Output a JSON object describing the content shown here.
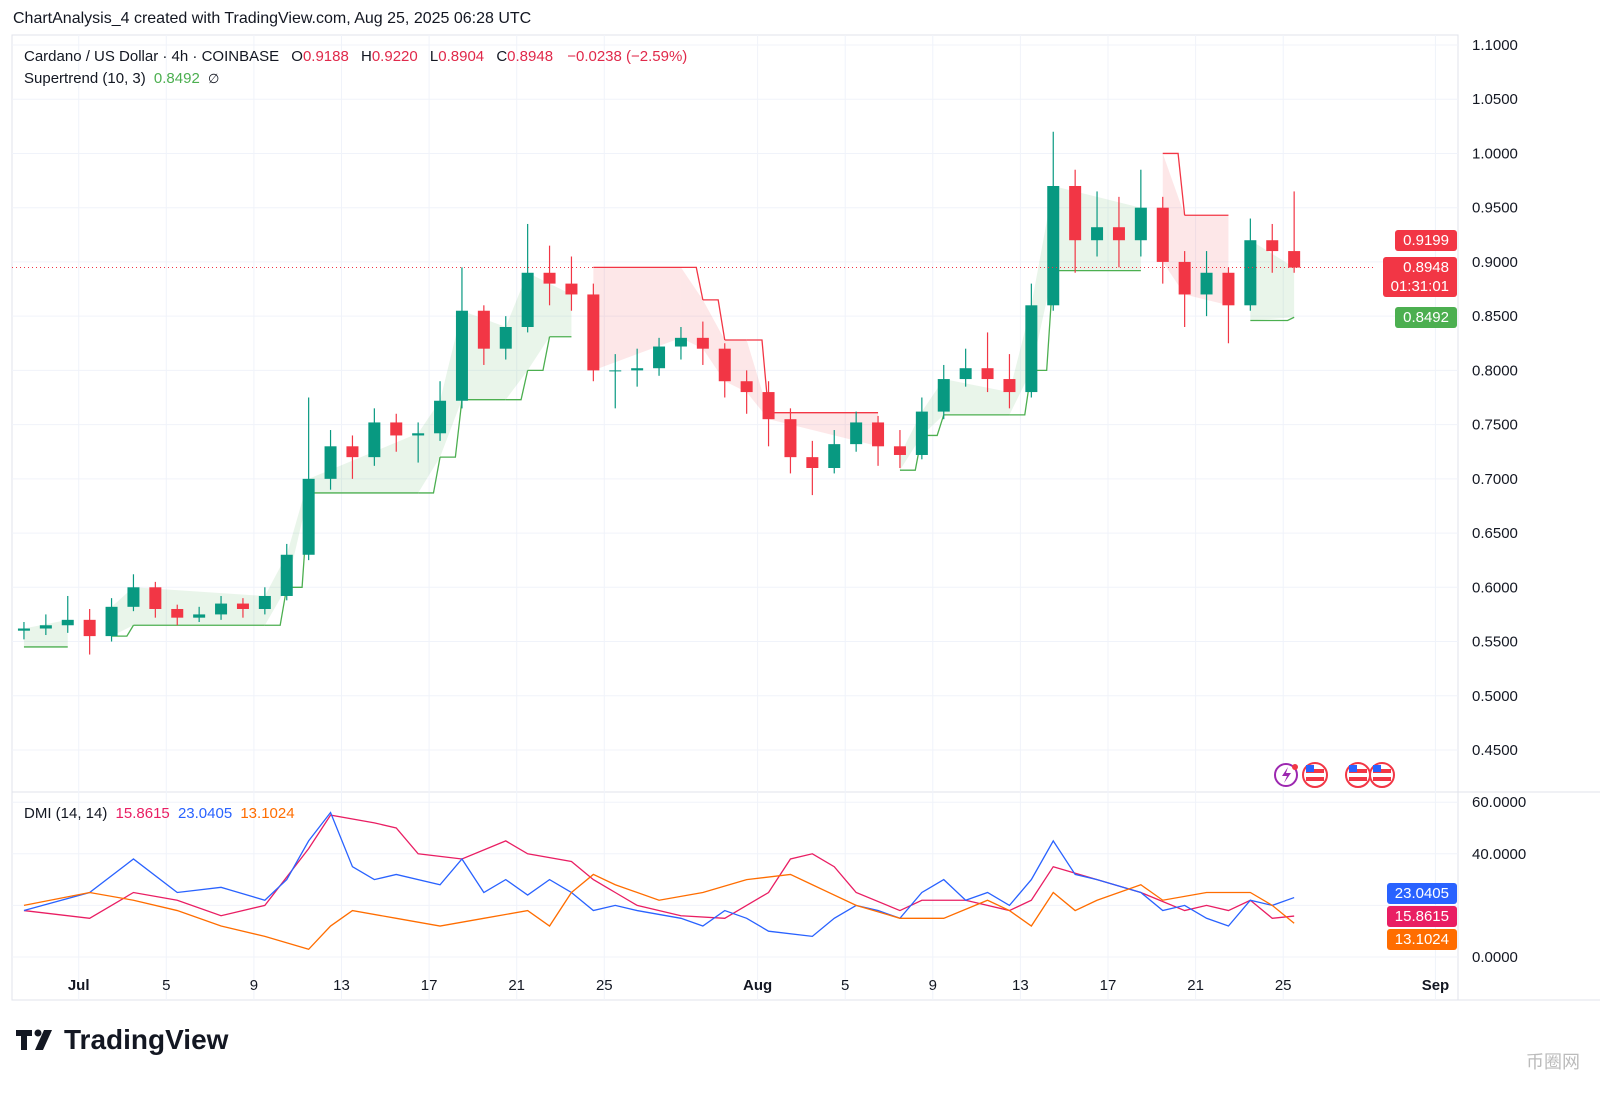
{
  "header": {
    "caption": "ChartAnalysis_4 created with TradingView.com, Aug 25, 2025 06:28 UTC"
  },
  "legend": {
    "symbol": "Cardano / US Dollar · 4h · COINBASE",
    "o_label": "O",
    "o": "0.9188",
    "h_label": "H",
    "h": "0.9220",
    "l_label": "L",
    "l": "0.8904",
    "c_label": "C",
    "c": "0.8948",
    "change": "−0.0238 (−2.59%)",
    "supertrend_name": "Supertrend (10, 3)",
    "supertrend_value": "0.8492",
    "supertrend_icon": "∅",
    "dmi_name": "DMI (14, 14)",
    "dmi_v1": "15.8615",
    "dmi_v2": "23.0405",
    "dmi_v3": "13.1024"
  },
  "price_tags": {
    "supertrend_upper": "0.9199",
    "last": "0.8948",
    "countdown": "01:31:01",
    "supertrend_lower": "0.8492"
  },
  "dmi_tags": {
    "plus": "23.0405",
    "adx": "15.8615",
    "minus": "13.1024"
  },
  "colors": {
    "up": "#089981",
    "down": "#f23645",
    "st_up": "#4caf50",
    "st_down": "#f23645",
    "adx": "#e91e63",
    "plus_di": "#2962ff",
    "minus_di": "#ff6d00"
  },
  "logo": "TradingView",
  "watermark": "币圈网",
  "chart_data": [
    {
      "type": "candlestick",
      "title": "Cardano / US Dollar · 4h · COINBASE",
      "y_ticks": [
        "1.1000",
        "1.0500",
        "1.0000",
        "0.9500",
        "0.9000",
        "0.8500",
        "0.8000",
        "0.7500",
        "0.7000",
        "0.6500",
        "0.6000",
        "0.5500",
        "0.5000",
        "0.4500"
      ],
      "ylim": [
        0.45,
        1.1
      ],
      "x_ticks": [
        "Jul",
        "5",
        "9",
        "13",
        "17",
        "21",
        "25",
        "Aug",
        "5",
        "9",
        "13",
        "17",
        "21",
        "25",
        "Sep"
      ],
      "ohlc_daily": [
        [
          "06-28",
          0.56,
          0.568,
          0.552,
          0.562
        ],
        [
          "06-29",
          0.562,
          0.575,
          0.556,
          0.565
        ],
        [
          "06-30",
          0.565,
          0.592,
          0.558,
          0.57
        ],
        [
          "07-01",
          0.57,
          0.58,
          0.538,
          0.555
        ],
        [
          "07-02",
          0.555,
          0.59,
          0.55,
          0.582
        ],
        [
          "07-03",
          0.582,
          0.612,
          0.578,
          0.6
        ],
        [
          "07-04",
          0.6,
          0.605,
          0.572,
          0.58
        ],
        [
          "07-05",
          0.58,
          0.584,
          0.565,
          0.572
        ],
        [
          "07-06",
          0.572,
          0.582,
          0.568,
          0.575
        ],
        [
          "07-07",
          0.575,
          0.592,
          0.57,
          0.585
        ],
        [
          "07-08",
          0.585,
          0.59,
          0.572,
          0.58
        ],
        [
          "07-09",
          0.58,
          0.6,
          0.575,
          0.592
        ],
        [
          "07-10",
          0.592,
          0.64,
          0.588,
          0.63
        ],
        [
          "07-11",
          0.63,
          0.775,
          0.625,
          0.7
        ],
        [
          "07-12",
          0.7,
          0.745,
          0.69,
          0.73
        ],
        [
          "07-13",
          0.73,
          0.74,
          0.7,
          0.72
        ],
        [
          "07-14",
          0.72,
          0.765,
          0.712,
          0.752
        ],
        [
          "07-15",
          0.752,
          0.76,
          0.725,
          0.74
        ],
        [
          "07-16",
          0.74,
          0.752,
          0.715,
          0.742
        ],
        [
          "07-17",
          0.742,
          0.79,
          0.735,
          0.772
        ],
        [
          "07-18",
          0.772,
          0.895,
          0.765,
          0.855
        ],
        [
          "07-19",
          0.855,
          0.86,
          0.805,
          0.82
        ],
        [
          "07-20",
          0.82,
          0.85,
          0.81,
          0.84
        ],
        [
          "07-21",
          0.84,
          0.935,
          0.835,
          0.89
        ],
        [
          "07-22",
          0.89,
          0.915,
          0.86,
          0.88
        ],
        [
          "07-23",
          0.88,
          0.905,
          0.855,
          0.87
        ],
        [
          "07-24",
          0.87,
          0.88,
          0.79,
          0.8
        ],
        [
          "07-25",
          0.8,
          0.815,
          0.765,
          0.8
        ],
        [
          "07-26",
          0.8,
          0.82,
          0.785,
          0.802
        ],
        [
          "07-27",
          0.802,
          0.83,
          0.795,
          0.822
        ],
        [
          "07-28",
          0.822,
          0.84,
          0.81,
          0.83
        ],
        [
          "07-29",
          0.83,
          0.845,
          0.805,
          0.82
        ],
        [
          "07-30",
          0.82,
          0.825,
          0.775,
          0.79
        ],
        [
          "07-31",
          0.79,
          0.8,
          0.76,
          0.78
        ],
        [
          "08-01",
          0.78,
          0.79,
          0.73,
          0.755
        ],
        [
          "08-02",
          0.755,
          0.765,
          0.705,
          0.72
        ],
        [
          "08-03",
          0.72,
          0.735,
          0.685,
          0.71
        ],
        [
          "08-04",
          0.71,
          0.745,
          0.705,
          0.732
        ],
        [
          "08-05",
          0.732,
          0.762,
          0.725,
          0.752
        ],
        [
          "08-06",
          0.752,
          0.758,
          0.712,
          0.73
        ],
        [
          "08-07",
          0.73,
          0.745,
          0.71,
          0.722
        ],
        [
          "08-08",
          0.722,
          0.775,
          0.718,
          0.762
        ],
        [
          "08-09",
          0.762,
          0.805,
          0.755,
          0.792
        ],
        [
          "08-10",
          0.792,
          0.82,
          0.785,
          0.802
        ],
        [
          "08-11",
          0.802,
          0.835,
          0.78,
          0.792
        ],
        [
          "08-12",
          0.792,
          0.815,
          0.765,
          0.78
        ],
        [
          "08-13",
          0.78,
          0.88,
          0.775,
          0.86
        ],
        [
          "08-14",
          0.86,
          1.02,
          0.855,
          0.97
        ],
        [
          "08-15",
          0.97,
          0.985,
          0.89,
          0.92
        ],
        [
          "08-16",
          0.92,
          0.965,
          0.905,
          0.932
        ],
        [
          "08-17",
          0.932,
          0.96,
          0.895,
          0.92
        ],
        [
          "08-18",
          0.92,
          0.985,
          0.905,
          0.95
        ],
        [
          "08-19",
          0.95,
          0.96,
          0.88,
          0.9
        ],
        [
          "08-20",
          0.9,
          0.91,
          0.84,
          0.87
        ],
        [
          "08-21",
          0.87,
          0.91,
          0.85,
          0.89
        ],
        [
          "08-22",
          0.89,
          0.895,
          0.825,
          0.86
        ],
        [
          "08-23",
          0.86,
          0.94,
          0.855,
          0.92
        ],
        [
          "08-24",
          0.92,
          0.935,
          0.89,
          0.91
        ],
        [
          "08-25",
          0.91,
          0.965,
          0.89,
          0.8948
        ]
      ],
      "supertrend": [
        [
          "06-28",
          0.545,
          "up"
        ],
        [
          "06-30",
          0.545,
          "up"
        ],
        [
          "07-01",
          0.58,
          "down"
        ],
        [
          "07-02",
          0.555,
          "up"
        ],
        [
          "07-03",
          0.565,
          "up"
        ],
        [
          "07-09",
          0.565,
          "up"
        ],
        [
          "07-10",
          0.6,
          "up"
        ],
        [
          "07-11",
          0.687,
          "up"
        ],
        [
          "07-16",
          0.687,
          "up"
        ],
        [
          "07-17",
          0.72,
          "up"
        ],
        [
          "07-18",
          0.773,
          "up"
        ],
        [
          "07-20",
          0.773,
          "up"
        ],
        [
          "07-21",
          0.8,
          "up"
        ],
        [
          "07-22",
          0.831,
          "up"
        ],
        [
          "07-23",
          0.831,
          "up"
        ],
        [
          "07-24",
          0.895,
          "down"
        ],
        [
          "07-28",
          0.895,
          "down"
        ],
        [
          "07-29",
          0.865,
          "down"
        ],
        [
          "07-30",
          0.828,
          "down"
        ],
        [
          "07-31",
          0.828,
          "down"
        ],
        [
          "08-01",
          0.761,
          "down"
        ],
        [
          "08-06",
          0.761,
          "down"
        ],
        [
          "08-07",
          0.708,
          "up"
        ],
        [
          "08-08",
          0.74,
          "up"
        ],
        [
          "08-09",
          0.759,
          "up"
        ],
        [
          "08-12",
          0.759,
          "up"
        ],
        [
          "08-13",
          0.8,
          "up"
        ],
        [
          "08-14",
          0.892,
          "up"
        ],
        [
          "08-18",
          0.892,
          "up"
        ],
        [
          "08-19",
          1.0,
          "down"
        ],
        [
          "08-20",
          0.943,
          "down"
        ],
        [
          "08-22",
          0.943,
          "down"
        ],
        [
          "08-23",
          0.846,
          "up"
        ],
        [
          "08-25",
          0.849,
          "up"
        ]
      ],
      "last_price": 0.8948
    },
    {
      "type": "line",
      "title": "DMI (14, 14)",
      "y_ticks": [
        "60.0000",
        "40.0000",
        "0.0000"
      ],
      "ylim": [
        0,
        60
      ],
      "series": [
        {
          "key": "adx",
          "values": [
            [
              "06-28",
              18
            ],
            [
              "07-01",
              15
            ],
            [
              "07-03",
              25
            ],
            [
              "07-05",
              22
            ],
            [
              "07-07",
              16
            ],
            [
              "07-09",
              20
            ],
            [
              "07-11",
              42
            ],
            [
              "07-12",
              55
            ],
            [
              "07-14",
              52
            ],
            [
              "07-15",
              50
            ],
            [
              "07-16",
              40
            ],
            [
              "07-18",
              38
            ],
            [
              "07-20",
              45
            ],
            [
              "07-21",
              40
            ],
            [
              "07-23",
              37
            ],
            [
              "07-24",
              30
            ],
            [
              "07-25",
              25
            ],
            [
              "07-26",
              20
            ],
            [
              "07-28",
              16
            ],
            [
              "07-30",
              15
            ],
            [
              "08-01",
              25
            ],
            [
              "08-02",
              38
            ],
            [
              "08-03",
              40
            ],
            [
              "08-04",
              35
            ],
            [
              "08-05",
              25
            ],
            [
              "08-07",
              18
            ],
            [
              "08-08",
              22
            ],
            [
              "08-10",
              22
            ],
            [
              "08-12",
              18
            ],
            [
              "08-13",
              22
            ],
            [
              "08-14",
              35
            ],
            [
              "08-16",
              30
            ],
            [
              "08-18",
              25
            ],
            [
              "08-20",
              18
            ],
            [
              "08-21",
              20
            ],
            [
              "08-22",
              18
            ],
            [
              "08-23",
              22
            ],
            [
              "08-24",
              15
            ],
            [
              "08-25",
              15.86
            ]
          ]
        },
        {
          "key": "plus_di",
          "values": [
            [
              "06-28",
              18
            ],
            [
              "07-01",
              25
            ],
            [
              "07-03",
              38
            ],
            [
              "07-05",
              25
            ],
            [
              "07-07",
              27
            ],
            [
              "07-09",
              22
            ],
            [
              "07-10",
              30
            ],
            [
              "07-11",
              45
            ],
            [
              "07-12",
              56
            ],
            [
              "07-13",
              35
            ],
            [
              "07-14",
              30
            ],
            [
              "07-15",
              32
            ],
            [
              "07-17",
              28
            ],
            [
              "07-18",
              38
            ],
            [
              "07-19",
              25
            ],
            [
              "07-20",
              30
            ],
            [
              "07-21",
              24
            ],
            [
              "07-22",
              30
            ],
            [
              "07-23",
              25
            ],
            [
              "07-24",
              18
            ],
            [
              "07-25",
              20
            ],
            [
              "07-26",
              18
            ],
            [
              "07-28",
              15
            ],
            [
              "07-29",
              12
            ],
            [
              "07-30",
              18
            ],
            [
              "07-31",
              15
            ],
            [
              "08-01",
              10
            ],
            [
              "08-03",
              8
            ],
            [
              "08-04",
              15
            ],
            [
              "08-05",
              20
            ],
            [
              "08-06",
              18
            ],
            [
              "08-07",
              15
            ],
            [
              "08-08",
              25
            ],
            [
              "08-09",
              30
            ],
            [
              "08-10",
              22
            ],
            [
              "08-11",
              25
            ],
            [
              "08-12",
              20
            ],
            [
              "08-13",
              30
            ],
            [
              "08-14",
              45
            ],
            [
              "08-15",
              32
            ],
            [
              "08-16",
              30
            ],
            [
              "08-18",
              25
            ],
            [
              "08-19",
              18
            ],
            [
              "08-20",
              20
            ],
            [
              "08-21",
              15
            ],
            [
              "08-22",
              12
            ],
            [
              "08-23",
              22
            ],
            [
              "08-24",
              20
            ],
            [
              "08-25",
              23.04
            ]
          ]
        },
        {
          "key": "minus_di",
          "values": [
            [
              "06-28",
              20
            ],
            [
              "07-01",
              25
            ],
            [
              "07-03",
              22
            ],
            [
              "07-05",
              18
            ],
            [
              "07-07",
              12
            ],
            [
              "07-09",
              8
            ],
            [
              "07-11",
              3
            ],
            [
              "07-12",
              12
            ],
            [
              "07-13",
              18
            ],
            [
              "07-15",
              15
            ],
            [
              "07-17",
              12
            ],
            [
              "07-19",
              15
            ],
            [
              "07-21",
              18
            ],
            [
              "07-22",
              12
            ],
            [
              "07-23",
              25
            ],
            [
              "07-24",
              32
            ],
            [
              "07-25",
              28
            ],
            [
              "07-27",
              22
            ],
            [
              "07-29",
              25
            ],
            [
              "07-31",
              30
            ],
            [
              "08-02",
              32
            ],
            [
              "08-03",
              28
            ],
            [
              "08-05",
              20
            ],
            [
              "08-07",
              15
            ],
            [
              "08-09",
              15
            ],
            [
              "08-11",
              22
            ],
            [
              "08-12",
              18
            ],
            [
              "08-13",
              12
            ],
            [
              "08-14",
              25
            ],
            [
              "08-15",
              18
            ],
            [
              "08-16",
              22
            ],
            [
              "08-17",
              25
            ],
            [
              "08-18",
              28
            ],
            [
              "08-19",
              22
            ],
            [
              "08-21",
              25
            ],
            [
              "08-23",
              25
            ],
            [
              "08-24",
              20
            ],
            [
              "08-25",
              13.1
            ]
          ]
        }
      ]
    }
  ]
}
